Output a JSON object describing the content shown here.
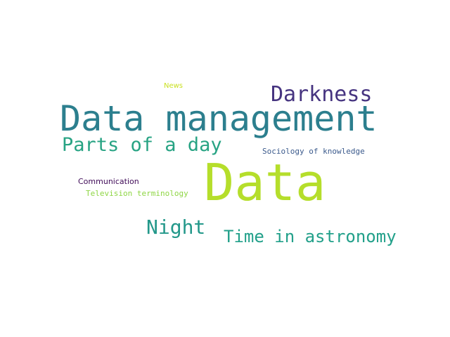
{
  "words": [
    {
      "id": "w-data",
      "text": "Data",
      "color": "#b5de2b"
    },
    {
      "id": "w-data-mgmt",
      "text": "Data management",
      "color": "#2c7f8e"
    },
    {
      "id": "w-darkness",
      "text": "Darkness",
      "color": "#463480"
    },
    {
      "id": "w-parts",
      "text": "Parts of a day",
      "color": "#27a383"
    },
    {
      "id": "w-night",
      "text": "Night",
      "color": "#23988a"
    },
    {
      "id": "w-time",
      "text": "Time in astronomy",
      "color": "#22a08a"
    },
    {
      "id": "w-sociology",
      "text": "Sociology of knowledge",
      "color": "#3b5a8c"
    },
    {
      "id": "w-communication",
      "text": "Communication",
      "color": "#3f0a57"
    },
    {
      "id": "w-television",
      "text": "Television terminology",
      "color": "#8fd645"
    },
    {
      "id": "w-news",
      "text": "News",
      "color": "#c9e020"
    }
  ]
}
